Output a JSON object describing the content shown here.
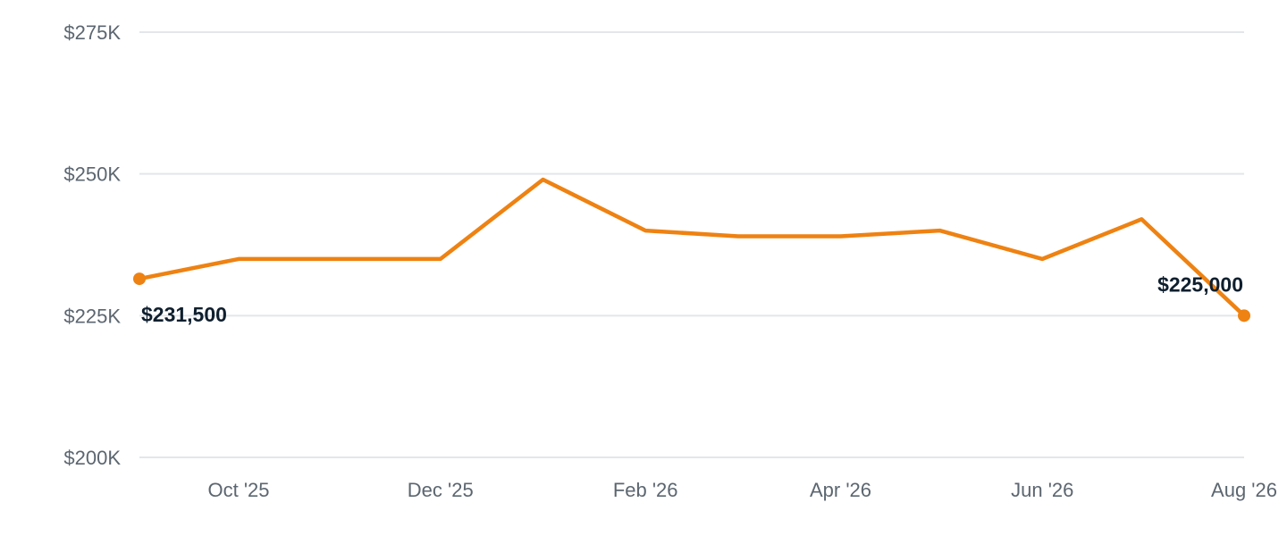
{
  "chart_data": {
    "type": "line",
    "title": "",
    "xlabel": "",
    "ylabel": "",
    "ylim": [
      200000,
      275000
    ],
    "y_ticks": [
      {
        "value": 200000,
        "label": "$200K"
      },
      {
        "value": 225000,
        "label": "$225K"
      },
      {
        "value": 250000,
        "label": "$250K"
      },
      {
        "value": 275000,
        "label": "$275K"
      }
    ],
    "x_range": [
      "2025-09-01",
      "2026-08-01"
    ],
    "x_ticks": [
      {
        "date": "2025-10-01",
        "label": "Oct '25"
      },
      {
        "date": "2025-12-01",
        "label": "Dec '25"
      },
      {
        "date": "2026-02-01",
        "label": "Feb '26"
      },
      {
        "date": "2026-04-01",
        "label": "Apr '26"
      },
      {
        "date": "2026-06-01",
        "label": "Jun '26"
      },
      {
        "date": "2026-08-01",
        "label": "Aug '26"
      }
    ],
    "grid": true,
    "legend": "none",
    "colors": {
      "line": "#ee8212",
      "grid": "#e3e6ea",
      "tick_text": "#5c6670",
      "label_text": "#0f1f2e"
    },
    "series": [
      {
        "x": [
          "2025-09-01",
          "2025-10-01",
          "2025-11-01",
          "2025-12-01",
          "2026-01-01",
          "2026-02-01",
          "2026-03-01",
          "2026-04-01",
          "2026-05-01",
          "2026-06-01",
          "2026-07-01",
          "2026-08-01"
        ],
        "values": [
          231500,
          235000,
          235000,
          235000,
          249000,
          240000,
          239000,
          239000,
          240000,
          235000,
          242000,
          225000
        ]
      }
    ],
    "annotations": [
      {
        "date": "2025-09-01",
        "value": 231500,
        "text": "$231,500",
        "placement": "below-right"
      },
      {
        "date": "2026-08-01",
        "value": 225000,
        "text": "$225,000",
        "placement": "above-left"
      }
    ]
  }
}
